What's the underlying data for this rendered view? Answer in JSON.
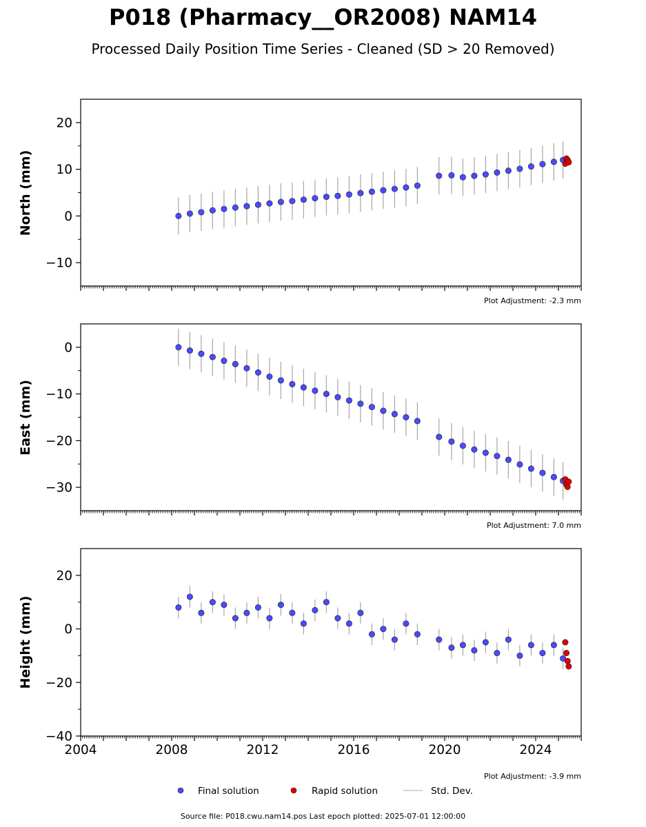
{
  "header": {
    "title": "P018 (Pharmacy__OR2008) NAM14",
    "subtitle": "Processed Daily Position Time Series - Cleaned (SD > 20 Removed)"
  },
  "legend": {
    "final_label": "Final solution",
    "rapid_label": "Rapid solution",
    "sd_label": "Std. Dev."
  },
  "footer": {
    "source_text": "Source file: P018.cwu.nam14.pos  Last epoch plotted: 2025-07-01 12:00:00"
  },
  "colors": {
    "final": "#4a4aff",
    "rapid": "#e00000",
    "sd": "#808080",
    "marker_edge": "#1a1a1a"
  },
  "chart_data": [
    {
      "type": "scatter",
      "panel": "north",
      "ylabel": "North (mm)",
      "adjustment": "Plot Adjustment: -2.3 mm",
      "xlim": [
        2004.0,
        2026.0
      ],
      "ylim": [
        -15,
        25
      ],
      "yticks": [
        -10,
        0,
        10,
        20
      ],
      "ytick_labels": [
        "−10",
        "0",
        "10",
        "20"
      ],
      "grid": false,
      "series": [
        {
          "name": "Final solution",
          "x": [
            2008.3,
            2008.8,
            2009.3,
            2009.8,
            2010.3,
            2010.8,
            2011.3,
            2011.8,
            2012.3,
            2012.8,
            2013.3,
            2013.8,
            2014.3,
            2014.8,
            2015.3,
            2015.8,
            2016.3,
            2016.8,
            2017.3,
            2017.8,
            2018.3,
            2018.8,
            2019.75,
            2020.3,
            2020.8,
            2021.3,
            2021.8,
            2022.3,
            2022.8,
            2023.3,
            2023.8,
            2024.3,
            2024.8,
            2025.2
          ],
          "y": [
            0.0,
            0.5,
            0.8,
            1.2,
            1.5,
            1.8,
            2.1,
            2.4,
            2.7,
            3.0,
            3.2,
            3.5,
            3.8,
            4.1,
            4.3,
            4.6,
            4.9,
            5.2,
            5.5,
            5.8,
            6.1,
            6.5,
            8.6,
            8.7,
            8.3,
            8.6,
            8.9,
            9.3,
            9.7,
            10.1,
            10.6,
            11.1,
            11.6,
            12.0
          ]
        },
        {
          "name": "Rapid solution",
          "x": [
            2025.3,
            2025.35,
            2025.4,
            2025.45
          ],
          "y": [
            11.2,
            12.3,
            12.0,
            11.5
          ]
        }
      ]
    },
    {
      "type": "scatter",
      "panel": "east",
      "ylabel": "East (mm)",
      "adjustment": "Plot Adjustment: 7.0 mm",
      "xlim": [
        2004.0,
        2026.0
      ],
      "ylim": [
        -35,
        5
      ],
      "yticks": [
        -30,
        -20,
        -10,
        0
      ],
      "ytick_labels": [
        "−30",
        "−20",
        "−10",
        "0"
      ],
      "grid": false,
      "series": [
        {
          "name": "Final solution",
          "x": [
            2008.3,
            2008.8,
            2009.3,
            2009.8,
            2010.3,
            2010.8,
            2011.3,
            2011.8,
            2012.3,
            2012.8,
            2013.3,
            2013.8,
            2014.3,
            2014.8,
            2015.3,
            2015.8,
            2016.3,
            2016.8,
            2017.3,
            2017.8,
            2018.3,
            2018.8,
            2019.75,
            2020.3,
            2020.8,
            2021.3,
            2021.8,
            2022.3,
            2022.8,
            2023.3,
            2023.8,
            2024.3,
            2024.8,
            2025.2
          ],
          "y": [
            0.0,
            -0.7,
            -1.4,
            -2.1,
            -2.9,
            -3.6,
            -4.5,
            -5.4,
            -6.3,
            -7.1,
            -7.9,
            -8.6,
            -9.3,
            -10.0,
            -10.7,
            -11.4,
            -12.1,
            -12.8,
            -13.6,
            -14.3,
            -15.0,
            -15.8,
            -19.2,
            -20.2,
            -21.1,
            -21.9,
            -22.6,
            -23.3,
            -24.1,
            -25.1,
            -26.0,
            -26.9,
            -27.8,
            -28.6
          ]
        },
        {
          "name": "Rapid solution",
          "x": [
            2025.3,
            2025.35,
            2025.4,
            2025.45
          ],
          "y": [
            -28.3,
            -29.4,
            -29.9,
            -28.8
          ]
        }
      ]
    },
    {
      "type": "scatter",
      "panel": "height",
      "ylabel": "Height (mm)",
      "adjustment": "Plot Adjustment: -3.9 mm",
      "xlim": [
        2004.0,
        2026.0
      ],
      "ylim": [
        -40,
        30
      ],
      "yticks": [
        -40,
        -20,
        0,
        20
      ],
      "ytick_labels": [
        "−40",
        "−20",
        "0",
        "20"
      ],
      "xticks": [
        2004,
        2008,
        2012,
        2016,
        2020,
        2024
      ],
      "xtick_labels": [
        "2004",
        "2008",
        "2012",
        "2016",
        "2020",
        "2024"
      ],
      "grid": false,
      "series": [
        {
          "name": "Final solution",
          "x": [
            2008.3,
            2008.8,
            2009.3,
            2009.8,
            2010.3,
            2010.8,
            2011.3,
            2011.8,
            2012.3,
            2012.8,
            2013.3,
            2013.8,
            2014.3,
            2014.8,
            2015.3,
            2015.8,
            2016.3,
            2016.8,
            2017.3,
            2017.8,
            2018.3,
            2018.8,
            2019.75,
            2020.3,
            2020.8,
            2021.3,
            2021.8,
            2022.3,
            2022.8,
            2023.3,
            2023.8,
            2024.3,
            2024.8,
            2025.2
          ],
          "y": [
            8.0,
            12.0,
            6.0,
            10.0,
            9.0,
            4.0,
            6.0,
            8.0,
            4.0,
            9.0,
            6.0,
            2.0,
            7.0,
            10.0,
            4.0,
            2.0,
            6.0,
            -2.0,
            0.0,
            -4.0,
            2.0,
            -2.0,
            -4.0,
            -7.0,
            -6.0,
            -8.0,
            -5.0,
            -9.0,
            -4.0,
            -10.0,
            -6.0,
            -9.0,
            -6.0,
            -11.0
          ]
        },
        {
          "name": "Rapid solution",
          "x": [
            2025.3,
            2025.35,
            2025.4,
            2025.45
          ],
          "y": [
            -5.0,
            -9.0,
            -12.0,
            -14.0
          ]
        }
      ]
    }
  ]
}
